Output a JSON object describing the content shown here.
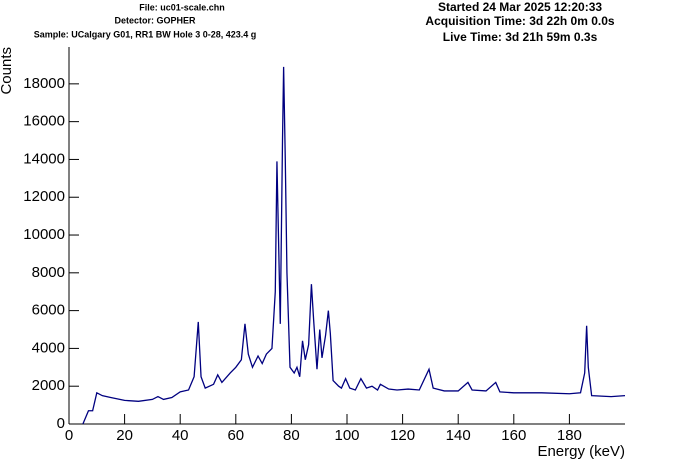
{
  "chart_data": {
    "type": "line",
    "header_left": [
      "File: uc01-scale.chn",
      "Detector: GOPHER",
      "Sample: UCalgary G01, RR1 BW Hole 3 0-28, 423.4 g"
    ],
    "header_right": [
      "Started 24 Mar 2025 12:20:33",
      "Acquisition Time: 3d 22h 0m 0.0s",
      "Live Time: 3d 21h 59m 0.3s"
    ],
    "x_label": "Energy (keV)",
    "y_label": "Counts",
    "color": "#000080",
    "x": [
      5,
      7,
      8.5,
      10,
      12,
      15,
      20,
      25,
      30,
      32,
      34,
      37,
      40,
      43,
      45,
      46.5,
      47.5,
      49,
      52,
      53.5,
      55,
      58,
      60,
      62,
      63.3,
      64.5,
      66,
      68,
      69.5,
      71,
      73,
      74.2,
      74.8,
      75.2,
      76,
      76.8,
      77.2,
      77.8,
      78.4,
      79.5,
      81,
      82,
      83,
      84,
      85,
      86.2,
      87.2,
      88,
      89.2,
      90.2,
      91,
      92.3,
      93.3,
      94,
      95,
      97,
      98,
      99.5,
      101,
      103,
      105,
      107,
      109,
      111,
      112,
      115,
      118,
      122,
      126,
      129.5,
      131,
      135,
      140,
      143.5,
      145,
      150,
      153.5,
      155,
      160,
      170,
      180,
      184,
      185.5,
      186.2,
      186.8,
      188,
      195,
      200
    ],
    "values": [
      0,
      700,
      700,
      1650,
      1500,
      1400,
      1250,
      1200,
      1300,
      1450,
      1300,
      1400,
      1700,
      1800,
      2500,
      5400,
      2500,
      1900,
      2100,
      2600,
      2200,
      2700,
      3000,
      3400,
      5300,
      3700,
      3000,
      3600,
      3200,
      3700,
      4000,
      7000,
      13900,
      11000,
      5300,
      15000,
      18900,
      14000,
      8000,
      3000,
      2700,
      3000,
      2500,
      4400,
      3400,
      4200,
      7400,
      5500,
      2900,
      5000,
      3500,
      4700,
      6000,
      4800,
      2300,
      2000,
      1900,
      2400,
      1900,
      1800,
      2400,
      1900,
      2000,
      1800,
      2100,
      1850,
      1800,
      1850,
      1800,
      2900,
      1900,
      1750,
      1750,
      2200,
      1800,
      1750,
      2200,
      1700,
      1650,
      1650,
      1600,
      1650,
      2700,
      5200,
      3000,
      1500,
      1450,
      1500
    ],
    "xlim": [
      0,
      200
    ],
    "ylim": [
      0,
      19950
    ],
    "xticks": [
      0,
      20,
      40,
      60,
      80,
      100,
      120,
      140,
      160,
      180
    ],
    "yticks": [
      0,
      2000,
      4000,
      6000,
      8000,
      10000,
      12000,
      14000,
      16000,
      18000
    ]
  }
}
